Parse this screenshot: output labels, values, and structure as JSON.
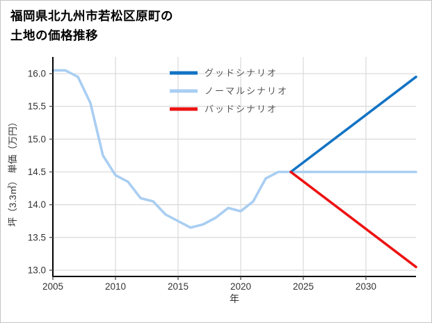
{
  "card": {
    "title_line1": "福岡県北九州市若松区原町の",
    "title_line2": "土地の価格推移"
  },
  "colors": {
    "good": "#1273c4",
    "normal": "#a9cef2",
    "bad": "#ed1212",
    "grid": "#dcdcdc",
    "axis": "#000000",
    "tick_label": "#333333",
    "legend_label": "#555555"
  },
  "chart_data": {
    "type": "line",
    "title": "福岡県北九州市若松区原町の土地の価格推移",
    "xlabel": "年",
    "ylabel": "坪（3.3㎡） 単価（万円）",
    "xlim": [
      2005,
      2034
    ],
    "ylim": [
      13.0,
      16.0
    ],
    "grid": true,
    "legend_position": "top-center-inside",
    "x_ticks": [
      "2005",
      "2010",
      "2015",
      "2020",
      "2025",
      "2030"
    ],
    "y_ticks": [
      "13.0",
      "13.5",
      "14.0",
      "14.5",
      "15.0",
      "15.5",
      "16.0"
    ],
    "legend": [
      {
        "label": "グッドシナリオ",
        "color": "#1273c4"
      },
      {
        "label": "ノーマルシナリオ",
        "color": "#a9cef2"
      },
      {
        "label": "バッドシナリオ",
        "color": "#ed1212"
      }
    ],
    "series": [
      {
        "name": "ノーマルシナリオ",
        "color": "#a9cef2",
        "x": [
          2005,
          2006,
          2007,
          2008,
          2009,
          2010,
          2011,
          2012,
          2013,
          2014,
          2015,
          2016,
          2017,
          2018,
          2019,
          2020,
          2021,
          2022,
          2023,
          2024,
          2034
        ],
        "values": [
          16.05,
          16.05,
          15.95,
          15.55,
          14.75,
          14.45,
          14.35,
          14.1,
          14.05,
          13.85,
          13.75,
          13.65,
          13.7,
          13.8,
          13.95,
          13.9,
          14.05,
          14.4,
          14.5,
          14.5,
          14.5
        ]
      },
      {
        "name": "グッドシナリオ",
        "color": "#1273c4",
        "x": [
          2024,
          2034
        ],
        "values": [
          14.5,
          15.95
        ]
      },
      {
        "name": "バッドシナリオ",
        "color": "#ed1212",
        "x": [
          2024,
          2034
        ],
        "values": [
          14.5,
          13.05
        ]
      }
    ]
  }
}
